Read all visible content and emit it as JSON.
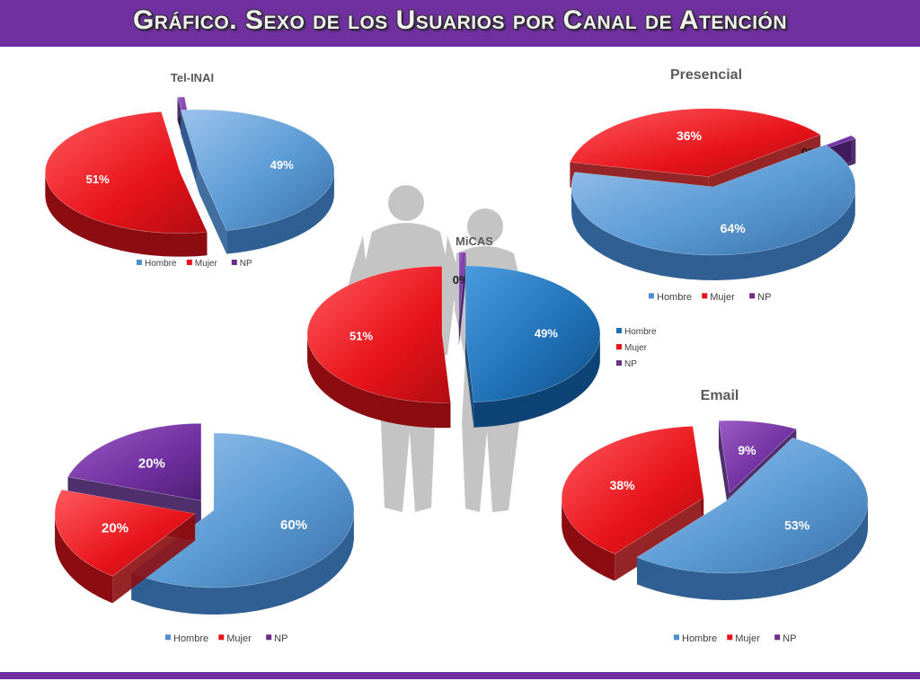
{
  "slide": {
    "title": "Gráfico. Sexo de los Usuarios por Canal de Atención"
  },
  "colors": {
    "header": "#7030a0",
    "hombre": "#4f8fd0",
    "hombre_micas": "#1f6fb4",
    "mujer": "#e8131a",
    "np": "#6a2e8e"
  },
  "silhouette": {
    "icon": "people-silhouette-icon"
  },
  "chart_data": [
    {
      "type": "pie",
      "title": "Tel-INAI",
      "labels": [
        "Hombre",
        "Mujer",
        "NP"
      ],
      "values": [
        49,
        51,
        0
      ],
      "data_labels": [
        "49%",
        "51%",
        "0%"
      ],
      "legend": "bottom"
    },
    {
      "type": "pie",
      "title": "Presencial",
      "labels": [
        "Hombre",
        "Mujer",
        "NP"
      ],
      "values": [
        64,
        36,
        0
      ],
      "data_labels": [
        "64%",
        "36%",
        "0%"
      ],
      "legend": "bottom"
    },
    {
      "type": "pie",
      "title": "MiCAS",
      "labels": [
        "Hombre",
        "Mujer",
        "NP"
      ],
      "values": [
        49,
        51,
        0
      ],
      "data_labels": [
        "49%",
        "51%",
        "0%"
      ],
      "legend": "right"
    },
    {
      "type": "pie",
      "title": "",
      "labels": [
        "Hombre",
        "Mujer",
        "NP"
      ],
      "values": [
        60,
        20,
        20
      ],
      "data_labels": [
        "60%",
        "20%",
        "20%"
      ],
      "legend": "bottom"
    },
    {
      "type": "pie",
      "title": "Email",
      "labels": [
        "Hombre",
        "Mujer",
        "NP"
      ],
      "values": [
        53,
        38,
        9
      ],
      "data_labels": [
        "53%",
        "38%",
        "9%"
      ],
      "legend": "bottom"
    }
  ]
}
